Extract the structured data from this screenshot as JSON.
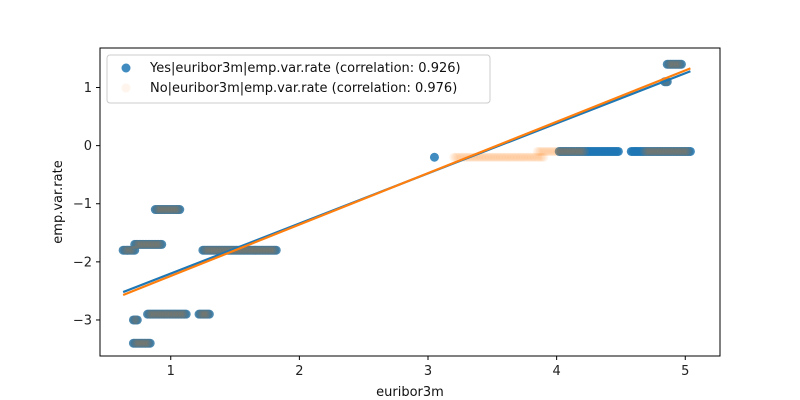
{
  "chart_data": {
    "type": "scatter",
    "title": "",
    "xlabel": "euribor3m",
    "ylabel": "emp.var.rate",
    "xlim": [
      0.45,
      5.27
    ],
    "ylim": [
      -3.62,
      1.68
    ],
    "xticks": [
      1,
      2,
      3,
      4,
      5
    ],
    "yticks": [
      -3,
      -2,
      -1,
      0,
      1
    ],
    "grid": false,
    "legend_position": "top-left",
    "series": [
      {
        "name": "Yes|euribor3m|emp.var.rate (correlation: 0.926)",
        "color": "#1f77b4",
        "alpha": 0.85,
        "clusters": [
          {
            "y": -1.8,
            "x_from": 0.63,
            "x_to": 0.72
          },
          {
            "y": -1.7,
            "x_from": 0.72,
            "x_to": 0.93
          },
          {
            "y": -3.0,
            "x_from": 0.71,
            "x_to": 0.74
          },
          {
            "y": -3.4,
            "x_from": 0.71,
            "x_to": 0.84
          },
          {
            "y": -2.9,
            "x_from": 0.82,
            "x_to": 1.12
          },
          {
            "y": -1.1,
            "x_from": 0.88,
            "x_to": 1.07
          },
          {
            "y": -2.9,
            "x_from": 1.22,
            "x_to": 1.3
          },
          {
            "y": -1.8,
            "x_from": 1.25,
            "x_to": 1.82
          },
          {
            "y": -0.2,
            "x_from": 3.05,
            "x_to": 3.05
          },
          {
            "y": -0.1,
            "x_from": 4.02,
            "x_to": 4.48
          },
          {
            "y": -0.1,
            "x_from": 4.58,
            "x_to": 5.04
          },
          {
            "y": 1.1,
            "x_from": 4.84,
            "x_to": 4.86
          },
          {
            "y": 1.4,
            "x_from": 4.86,
            "x_to": 4.97
          }
        ],
        "regression": {
          "x": [
            0.63,
            5.04
          ],
          "y": [
            -2.52,
            1.28
          ]
        }
      },
      {
        "name": "No|euribor3m|emp.var.rate (correlation: 0.976)",
        "color": "#ff7f0e",
        "alpha": 0.08,
        "clusters": [
          {
            "y": -1.8,
            "x_from": 0.63,
            "x_to": 0.72
          },
          {
            "y": -1.7,
            "x_from": 0.72,
            "x_to": 0.93
          },
          {
            "y": -3.0,
            "x_from": 0.71,
            "x_to": 0.74
          },
          {
            "y": -3.4,
            "x_from": 0.71,
            "x_to": 0.84
          },
          {
            "y": -2.9,
            "x_from": 0.82,
            "x_to": 1.12
          },
          {
            "y": -1.1,
            "x_from": 0.88,
            "x_to": 1.07
          },
          {
            "y": -2.9,
            "x_from": 1.22,
            "x_to": 1.3
          },
          {
            "y": -1.8,
            "x_from": 1.25,
            "x_to": 1.82
          },
          {
            "y": -0.2,
            "x_from": 3.2,
            "x_to": 3.9
          },
          {
            "y": -0.1,
            "x_from": 3.85,
            "x_to": 4.22
          },
          {
            "y": -0.1,
            "x_from": 4.68,
            "x_to": 5.03
          },
          {
            "y": 1.1,
            "x_from": 4.84,
            "x_to": 4.86
          },
          {
            "y": 1.4,
            "x_from": 4.86,
            "x_to": 4.97
          }
        ],
        "regression": {
          "x": [
            0.63,
            5.04
          ],
          "y": [
            -2.57,
            1.33
          ]
        }
      }
    ]
  }
}
